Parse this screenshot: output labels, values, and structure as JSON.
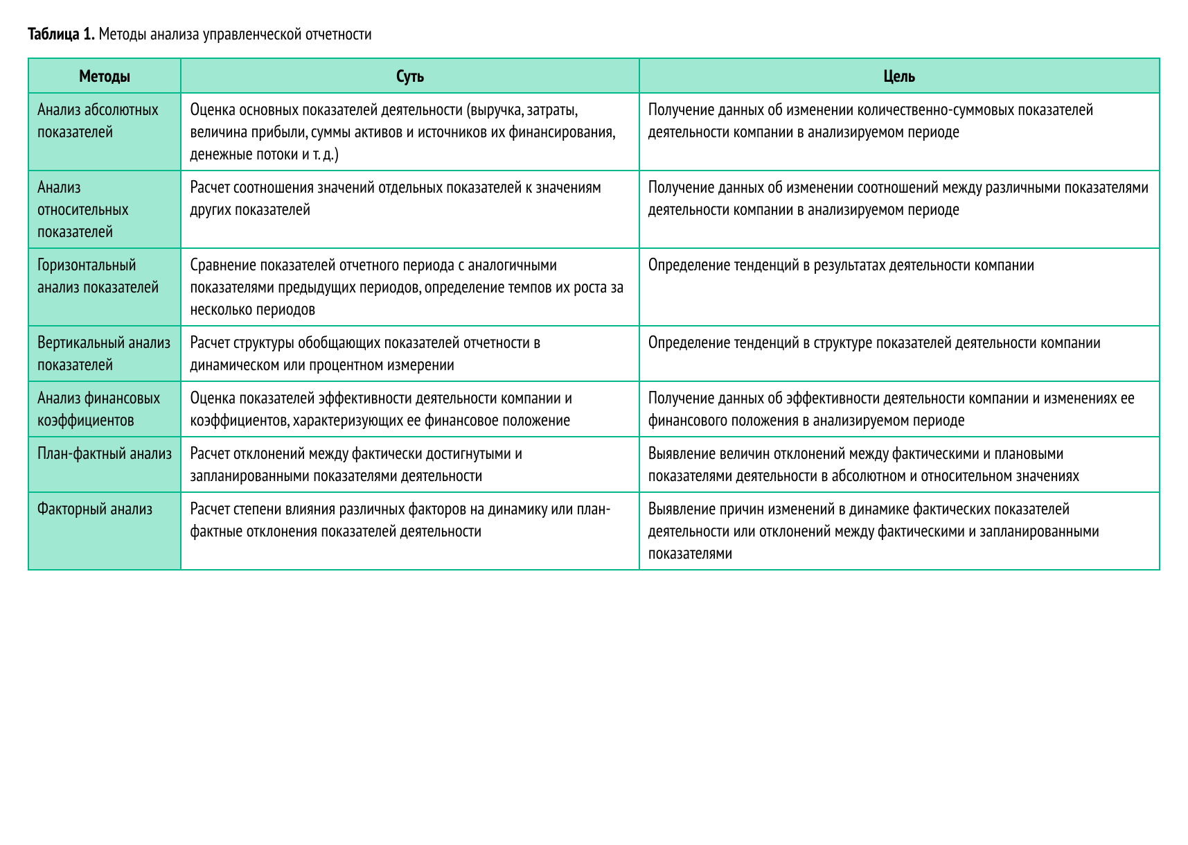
{
  "caption_label": "Таблица 1.",
  "caption_text": "Методы анализа управленческой отчетности",
  "table": {
    "border_color": "#00b98d",
    "header_bg": "#a1e8d2",
    "method_col_bg": "#a1e8d2",
    "body_bg": "#ffffff",
    "text_color": "#000000",
    "font_size_pt": 18,
    "col_widths_pct": [
      13.5,
      40.5,
      46
    ],
    "columns": [
      "Методы",
      "Суть",
      "Цель"
    ],
    "rows": [
      {
        "method": "Анализ абсолютных показателей",
        "essence": "Оценка основных показателей деятельности (выручка, затраты, величина прибыли, суммы активов и источников их финансирования, денежные потоки и т. д.)",
        "goal": "Получение данных об изменении количественно-суммовых показателей деятельности компании в анализируемом периоде"
      },
      {
        "method": "Анализ относительных показателей",
        "essence": "Расчет соотношения значений отдельных показателей к значениям других показателей",
        "goal": "Получение данных об изменении соотношений между различными показателями деятельности компании в анализируемом периоде"
      },
      {
        "method": "Горизонтальный анализ показателей",
        "essence": "Сравнение показателей отчетного периода с аналогичными показателями предыдущих периодов, определение темпов их роста за несколько периодов",
        "goal": "Определение тенденций в результатах деятельности компании"
      },
      {
        "method": "Вертикальный анализ показателей",
        "essence": "Расчет структуры обобщающих показателей отчетности в динамическом или процентном измерении",
        "goal": "Определение тенденций в структуре показателей деятельности компании"
      },
      {
        "method": "Анализ финансовых коэффициентов",
        "essence": "Оценка показателей эффективности деятельности компании и коэффициентов, характеризующих ее финансовое положение",
        "goal": "Получение данных об эффективности деятельности компании и изменениях ее финансового положения в анализируемом периоде"
      },
      {
        "method": "План-фактный анализ",
        "essence": "Расчет отклонений между фактически достигнутыми и запланированными показателями деятельности",
        "goal": "Выявление величин отклонений между фактическими и плановыми показателями деятельности в абсолютном и относительном значениях"
      },
      {
        "method": "Факторный анализ",
        "essence": "Расчет степени влияния различных факторов на динамику или план-фактные отклонения показателей деятельности",
        "goal": "Выявление причин изменений в динамике фактических показателей деятельности или отклонений между фактическими и запланированными показателями"
      }
    ]
  }
}
